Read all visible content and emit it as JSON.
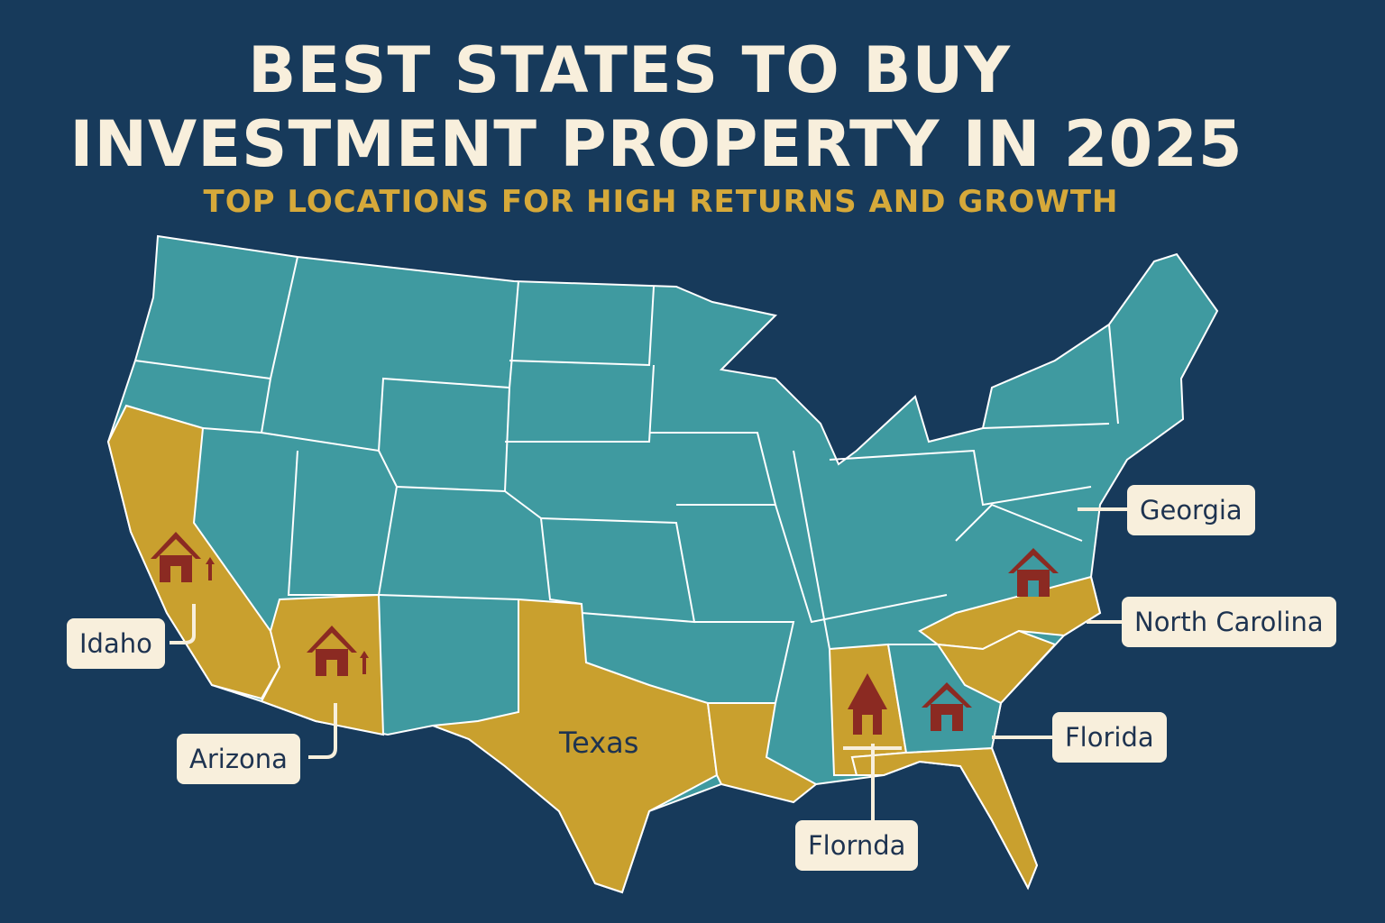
{
  "header": {
    "title_line1": "BEST STATES TO BUY",
    "title_line2": "INVESTMENT PROPERTY IN 2025",
    "subtitle": "TOP LOCATIONS FOR HIGH RETURNS AND GROWTH"
  },
  "map": {
    "highlighted_states": [
      "California",
      "Arizona",
      "Texas",
      "Louisiana",
      "Alabama",
      "Florida",
      "North Carolina",
      "South Carolina"
    ],
    "labels": {
      "idaho": "Idaho",
      "arizona": "Arizona",
      "texas": "Texas",
      "georgia": "Georgia",
      "north_carolina": "North Carolina",
      "florida": "Florida",
      "flornda": "Flornda"
    },
    "icons": [
      "house-growth-icon",
      "house-growth-icon",
      "house-icon",
      "house-icon",
      "house-icon"
    ]
  },
  "colors": {
    "background": "#173a5b",
    "base_state": "#3f9aa0",
    "highlight_state": "#c9a02e",
    "house": "#8b2a22",
    "label_bg": "#f8efdc",
    "title": "#f8efdc",
    "subtitle": "#d6a93a"
  }
}
